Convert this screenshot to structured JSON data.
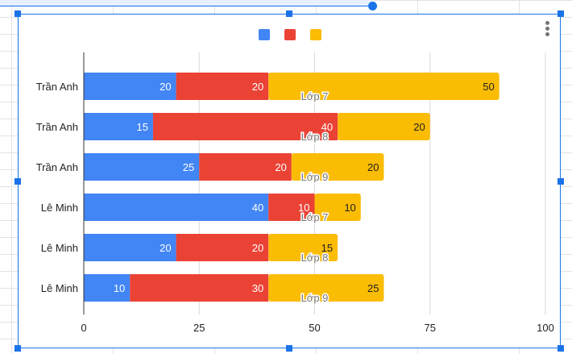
{
  "chart_data": {
    "type": "bar",
    "orientation": "horizontal",
    "stacked": true,
    "categories": [
      "Trần Anh",
      "Trần Anh",
      "Trần Anh",
      "Lê Minh",
      "Lê Minh",
      "Lê Minh"
    ],
    "annotations": [
      "Lớp 7",
      "Lớp 8",
      "Lớp 9",
      "Lớp 7",
      "Lớp 8",
      "Lớp 9"
    ],
    "series": [
      {
        "values": [
          20,
          15,
          25,
          40,
          20,
          10
        ],
        "color": "#4285f4"
      },
      {
        "values": [
          20,
          40,
          20,
          10,
          20,
          30
        ],
        "color": "#ea4335"
      },
      {
        "values": [
          50,
          20,
          20,
          10,
          15,
          25
        ],
        "color": "#fbbc04"
      }
    ],
    "xlim": [
      0,
      100
    ],
    "xticks": [
      "0",
      "25",
      "50",
      "75",
      "100"
    ],
    "grid": true,
    "legend": "top"
  }
}
